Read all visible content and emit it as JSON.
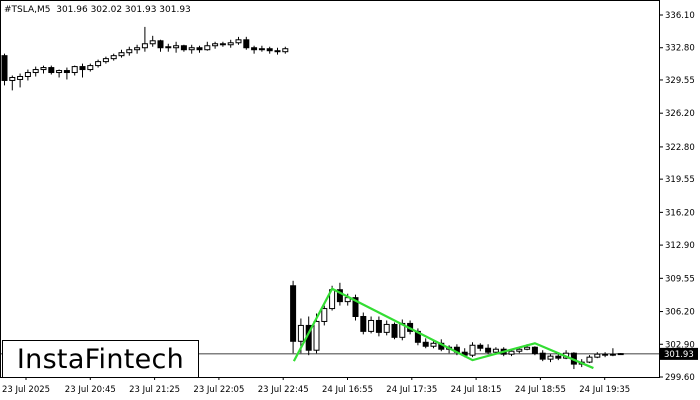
{
  "header": {
    "symbol": "#TSLA,M5",
    "ohlc": "301.96 302.02 301.93 301.93"
  },
  "brand": {
    "name": "InstaFintech"
  },
  "colors": {
    "background": "#ffffff",
    "candle": "#000000",
    "pattern": "#33dd33",
    "price_label_bg": "#000000",
    "price_label_fg": "#ffffff"
  },
  "chart_data": {
    "type": "candlestick",
    "title": "",
    "current_price": 301.93,
    "current_price_label": "301.93",
    "ylim": [
      299.6,
      336.1
    ],
    "y_ticks": [
      "336.10",
      "332.80",
      "329.55",
      "326.20",
      "322.80",
      "319.55",
      "316.20",
      "312.90",
      "309.55",
      "306.20",
      "302.90",
      "299.60"
    ],
    "x_ticks": [
      "23 Jul 2025",
      "23 Jul 20:45",
      "23 Jul 21:25",
      "23 Jul 22:05",
      "23 Jul 22:45",
      "24 Jul 16:55",
      "24 Jul 17:35",
      "24 Jul 18:15",
      "24 Jul 18:55",
      "24 Jul 19:35"
    ],
    "candles": [
      [
        332.0,
        332.2,
        329.0,
        329.5
      ],
      [
        329.5,
        330.0,
        328.5,
        329.8
      ],
      [
        329.6,
        330.2,
        328.8,
        329.9
      ],
      [
        329.9,
        330.6,
        329.5,
        330.3
      ],
      [
        330.3,
        330.9,
        329.9,
        330.6
      ],
      [
        330.6,
        331.0,
        330.2,
        330.8
      ],
      [
        330.8,
        331.0,
        330.1,
        330.3
      ],
      [
        330.3,
        330.6,
        329.8,
        330.5
      ],
      [
        330.5,
        330.8,
        329.6,
        330.3
      ],
      [
        330.3,
        331.0,
        330.0,
        330.9
      ],
      [
        330.9,
        331.2,
        329.8,
        330.6
      ],
      [
        330.6,
        331.2,
        330.4,
        331.0
      ],
      [
        331.0,
        331.6,
        330.8,
        331.4
      ],
      [
        331.4,
        331.9,
        331.2,
        331.7
      ],
      [
        331.7,
        332.2,
        331.5,
        332.0
      ],
      [
        332.0,
        332.6,
        331.8,
        332.3
      ],
      [
        332.3,
        332.9,
        332.0,
        332.6
      ],
      [
        332.6,
        333.1,
        332.2,
        332.8
      ],
      [
        332.8,
        334.9,
        332.4,
        333.2
      ],
      [
        333.2,
        334.0,
        332.9,
        333.5
      ],
      [
        333.5,
        333.6,
        332.4,
        332.8
      ],
      [
        332.8,
        333.2,
        332.4,
        332.9
      ],
      [
        332.8,
        333.4,
        332.3,
        333.0
      ],
      [
        333.0,
        333.1,
        332.4,
        332.6
      ],
      [
        332.6,
        333.1,
        332.2,
        332.8
      ],
      [
        332.8,
        333.0,
        332.3,
        332.6
      ],
      [
        332.6,
        333.4,
        332.5,
        333.0
      ],
      [
        333.0,
        333.4,
        332.7,
        333.2
      ],
      [
        333.2,
        333.4,
        332.9,
        333.1
      ],
      [
        333.1,
        333.6,
        332.8,
        333.3
      ],
      [
        333.3,
        333.9,
        333.1,
        333.6
      ],
      [
        333.6,
        333.9,
        332.6,
        332.8
      ],
      [
        332.8,
        333.0,
        332.2,
        332.6
      ],
      [
        332.6,
        333.0,
        332.4,
        332.7
      ],
      [
        332.7,
        332.9,
        332.2,
        332.5
      ],
      [
        332.5,
        332.8,
        332.1,
        332.4
      ],
      [
        332.4,
        332.9,
        332.2,
        332.7
      ],
      [
        308.8,
        309.3,
        302.0,
        303.2
      ],
      [
        303.2,
        305.5,
        302.0,
        304.8
      ],
      [
        304.8,
        305.7,
        301.8,
        302.3
      ],
      [
        302.3,
        306.0,
        302.0,
        305.2
      ],
      [
        305.2,
        306.8,
        304.8,
        306.5
      ],
      [
        306.5,
        308.8,
        306.3,
        308.4
      ],
      [
        308.4,
        309.1,
        306.8,
        307.2
      ],
      [
        307.2,
        308.0,
        306.8,
        307.6
      ],
      [
        307.6,
        307.9,
        305.3,
        305.7
      ],
      [
        305.7,
        306.1,
        303.9,
        304.2
      ],
      [
        304.2,
        305.7,
        304.0,
        305.3
      ],
      [
        305.3,
        305.7,
        303.7,
        304.1
      ],
      [
        304.1,
        305.3,
        303.8,
        304.9
      ],
      [
        304.9,
        305.1,
        303.4,
        303.6
      ],
      [
        303.6,
        305.4,
        303.3,
        305.0
      ],
      [
        305.0,
        305.3,
        303.9,
        304.2
      ],
      [
        304.2,
        304.5,
        302.8,
        303.1
      ],
      [
        303.1,
        303.5,
        302.5,
        302.7
      ],
      [
        302.7,
        303.3,
        302.5,
        303.0
      ],
      [
        303.0,
        303.4,
        302.2,
        302.4
      ],
      [
        302.4,
        302.8,
        302.0,
        302.6
      ],
      [
        302.6,
        302.9,
        301.8,
        302.1
      ],
      [
        302.1,
        302.5,
        301.6,
        301.8
      ],
      [
        301.8,
        303.1,
        301.6,
        302.8
      ],
      [
        302.8,
        303.0,
        302.2,
        302.5
      ],
      [
        302.5,
        302.9,
        301.9,
        302.1
      ],
      [
        302.1,
        302.6,
        301.9,
        302.4
      ],
      [
        302.4,
        302.6,
        301.7,
        301.9
      ],
      [
        301.9,
        302.4,
        301.7,
        302.2
      ],
      [
        302.2,
        302.6,
        302.0,
        302.4
      ],
      [
        302.4,
        302.9,
        302.3,
        302.6
      ],
      [
        302.6,
        302.7,
        301.8,
        302.0
      ],
      [
        302.0,
        302.3,
        301.2,
        301.4
      ],
      [
        301.4,
        301.9,
        301.1,
        301.7
      ],
      [
        301.7,
        302.0,
        301.3,
        301.5
      ],
      [
        301.5,
        302.3,
        301.4,
        302.0
      ],
      [
        302.0,
        302.1,
        300.4,
        300.9
      ],
      [
        300.9,
        301.4,
        300.6,
        301.1
      ],
      [
        301.1,
        301.8,
        301.0,
        301.6
      ],
      [
        301.6,
        302.1,
        301.5,
        301.9
      ],
      [
        301.9,
        302.1,
        301.6,
        301.8
      ],
      [
        301.8,
        302.5,
        301.7,
        301.9
      ],
      [
        301.96,
        302.02,
        301.93,
        301.93
      ]
    ],
    "pattern_points": [
      {
        "idx": 37.1,
        "price": 301.2
      },
      {
        "idx": 42.0,
        "price": 308.5
      },
      {
        "idx": 60.0,
        "price": 301.3
      },
      {
        "idx": 68.0,
        "price": 303.0
      },
      {
        "idx": 75.5,
        "price": 300.5
      }
    ]
  }
}
